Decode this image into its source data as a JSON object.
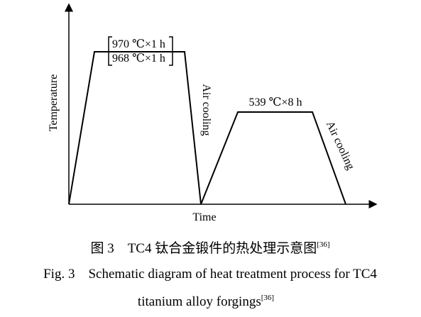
{
  "diagram": {
    "axis_y_label": "Temperature",
    "axis_x_label": "Time",
    "step1_label_a": "970 ℃×1 h",
    "step1_label_b": "968 ℃×1 h",
    "cooling1_label": "Air cooling",
    "step2_label": "539 ℃×8 h",
    "cooling2_label": "Air cooling"
  },
  "caption": {
    "cn": "图 3　TC4 钛合金锻件的热处理示意图",
    "cn_ref": "[36]",
    "en_line1": "Fig. 3　Schematic diagram of heat treatment process for TC4",
    "en_line2": "titanium alloy forgings",
    "en_ref": "[36]"
  }
}
